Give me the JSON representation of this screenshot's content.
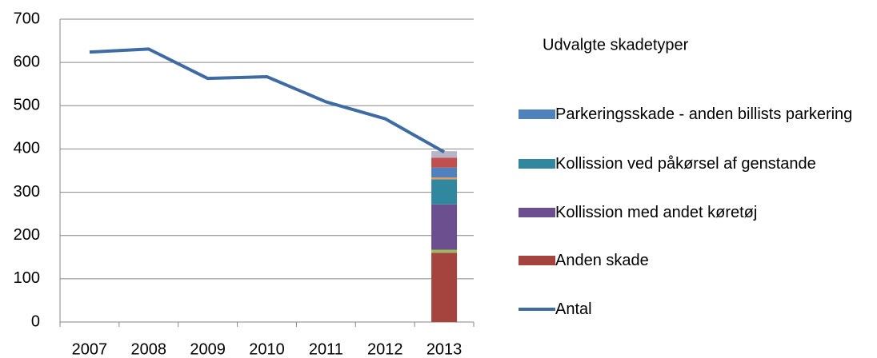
{
  "chart_data": {
    "type": "bar",
    "stacked": true,
    "legend_title": "Udvalgte skadetyper",
    "categories": [
      "2007",
      "2008",
      "2009",
      "2010",
      "2011",
      "2012",
      "2013"
    ],
    "series": [
      {
        "name": "Anden skade",
        "color": "#a5443f",
        "values": [
          null,
          null,
          null,
          null,
          null,
          null,
          160
        ]
      },
      {
        "color": "#9bbb59",
        "values": [
          null,
          null,
          null,
          null,
          null,
          null,
          7
        ]
      },
      {
        "name": "Kollission med andet køretøj",
        "color": "#6b4f8e",
        "values": [
          null,
          null,
          null,
          null,
          null,
          null,
          105
        ]
      },
      {
        "name": "Kollission ved påkørsel af genstande",
        "color": "#31889e",
        "values": [
          null,
          null,
          null,
          null,
          null,
          null,
          58
        ]
      },
      {
        "color": "#f79646",
        "values": [
          null,
          null,
          null,
          null,
          null,
          null,
          4
        ]
      },
      {
        "name": "Parkeringsskade - anden billists parkering",
        "color": "#4f81bd",
        "values": [
          null,
          null,
          null,
          null,
          null,
          null,
          23
        ]
      },
      {
        "color": "#c0504d",
        "values": [
          null,
          null,
          null,
          null,
          null,
          null,
          23
        ]
      },
      {
        "color": "#b9b5c9",
        "values": [
          null,
          null,
          null,
          null,
          null,
          null,
          15
        ]
      },
      {
        "name": "Antal",
        "type": "line",
        "color": "#3f6ba3",
        "values": [
          624,
          631,
          563,
          567,
          509,
          470,
          393
        ]
      }
    ],
    "ylim": [
      0,
      700
    ],
    "yticks": [
      0,
      100,
      200,
      300,
      400,
      500,
      600,
      700
    ],
    "grid": true
  }
}
